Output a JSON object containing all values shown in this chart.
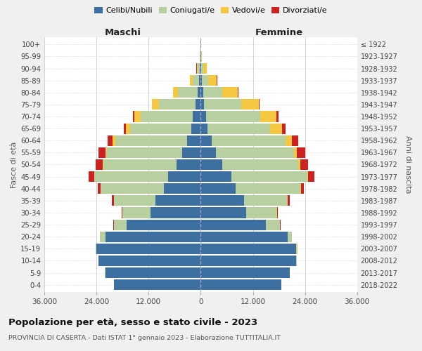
{
  "age_groups": [
    "0-4",
    "5-9",
    "10-14",
    "15-19",
    "20-24",
    "25-29",
    "30-34",
    "35-39",
    "40-44",
    "45-49",
    "50-54",
    "55-59",
    "60-64",
    "65-69",
    "70-74",
    "75-79",
    "80-84",
    "85-89",
    "90-94",
    "95-99",
    "100+"
  ],
  "birth_years": [
    "2018-2022",
    "2013-2017",
    "2008-2012",
    "2003-2007",
    "1998-2002",
    "1993-1997",
    "1988-1992",
    "1983-1987",
    "1978-1982",
    "1973-1977",
    "1968-1972",
    "1963-1967",
    "1958-1962",
    "1953-1957",
    "1948-1952",
    "1943-1947",
    "1938-1942",
    "1933-1937",
    "1928-1932",
    "1923-1927",
    "≤ 1922"
  ],
  "male_celibe": [
    20000,
    22000,
    23500,
    24000,
    22000,
    17000,
    11500,
    10500,
    8500,
    7500,
    5500,
    4200,
    3200,
    2200,
    1800,
    1200,
    700,
    400,
    200,
    80,
    50
  ],
  "male_coniugato": [
    20,
    30,
    50,
    200,
    1200,
    3000,
    6500,
    9500,
    14500,
    17000,
    17000,
    17500,
    16500,
    14000,
    12000,
    8500,
    4500,
    1500,
    500,
    80,
    30
  ],
  "male_vedovo": [
    1,
    1,
    2,
    5,
    10,
    20,
    40,
    60,
    80,
    100,
    150,
    300,
    600,
    1000,
    1500,
    1500,
    1200,
    600,
    250,
    50,
    10
  ],
  "male_divorziato": [
    1,
    2,
    5,
    20,
    50,
    100,
    200,
    400,
    600,
    1200,
    1500,
    1500,
    1200,
    600,
    300,
    100,
    50,
    30,
    20,
    10,
    5
  ],
  "female_celibe": [
    18500,
    20500,
    22000,
    22000,
    20000,
    15000,
    10500,
    10000,
    8000,
    7000,
    5000,
    3500,
    2500,
    1500,
    1200,
    800,
    500,
    300,
    150,
    60,
    40
  ],
  "female_coniugata": [
    20,
    30,
    50,
    200,
    1000,
    3200,
    7000,
    10000,
    15000,
    17500,
    17500,
    18000,
    17000,
    14500,
    12500,
    8500,
    4500,
    1400,
    400,
    50,
    20
  ],
  "female_vedova": [
    1,
    1,
    2,
    5,
    10,
    20,
    40,
    80,
    120,
    200,
    350,
    700,
    1500,
    2800,
    3800,
    4000,
    3500,
    2000,
    800,
    200,
    30
  ],
  "female_divorziata": [
    1,
    2,
    5,
    20,
    50,
    100,
    200,
    400,
    700,
    1500,
    1800,
    1800,
    1500,
    800,
    400,
    200,
    100,
    50,
    20,
    10,
    5
  ],
  "colors": {
    "celibe": "#3d6fa0",
    "coniugato": "#b8cfa0",
    "vedovo": "#f5c842",
    "divorziato": "#cc2222"
  },
  "legend_labels": [
    "Celibi/Nubili",
    "Coniugati/e",
    "Vedovi/e",
    "Divorziati/e"
  ],
  "xlim": 36000,
  "xticks": [
    -36000,
    -24000,
    -12000,
    0,
    12000,
    24000,
    36000
  ],
  "xtick_labels": [
    "36.000",
    "24.000",
    "12.000",
    "0",
    "12.000",
    "24.000",
    "36.000"
  ],
  "title": "Popolazione per età, sesso e stato civile - 2023",
  "subtitle": "PROVINCIA DI CASERTA - Dati ISTAT 1° gennaio 2023 - Elaborazione TUTTITALIA.IT",
  "ylabel_left": "Fasce di età",
  "ylabel_right": "Anni di nascita",
  "maschi_label": "Maschi",
  "femmine_label": "Femmine",
  "background_color": "#f0f0f0",
  "plot_bg": "#ffffff"
}
